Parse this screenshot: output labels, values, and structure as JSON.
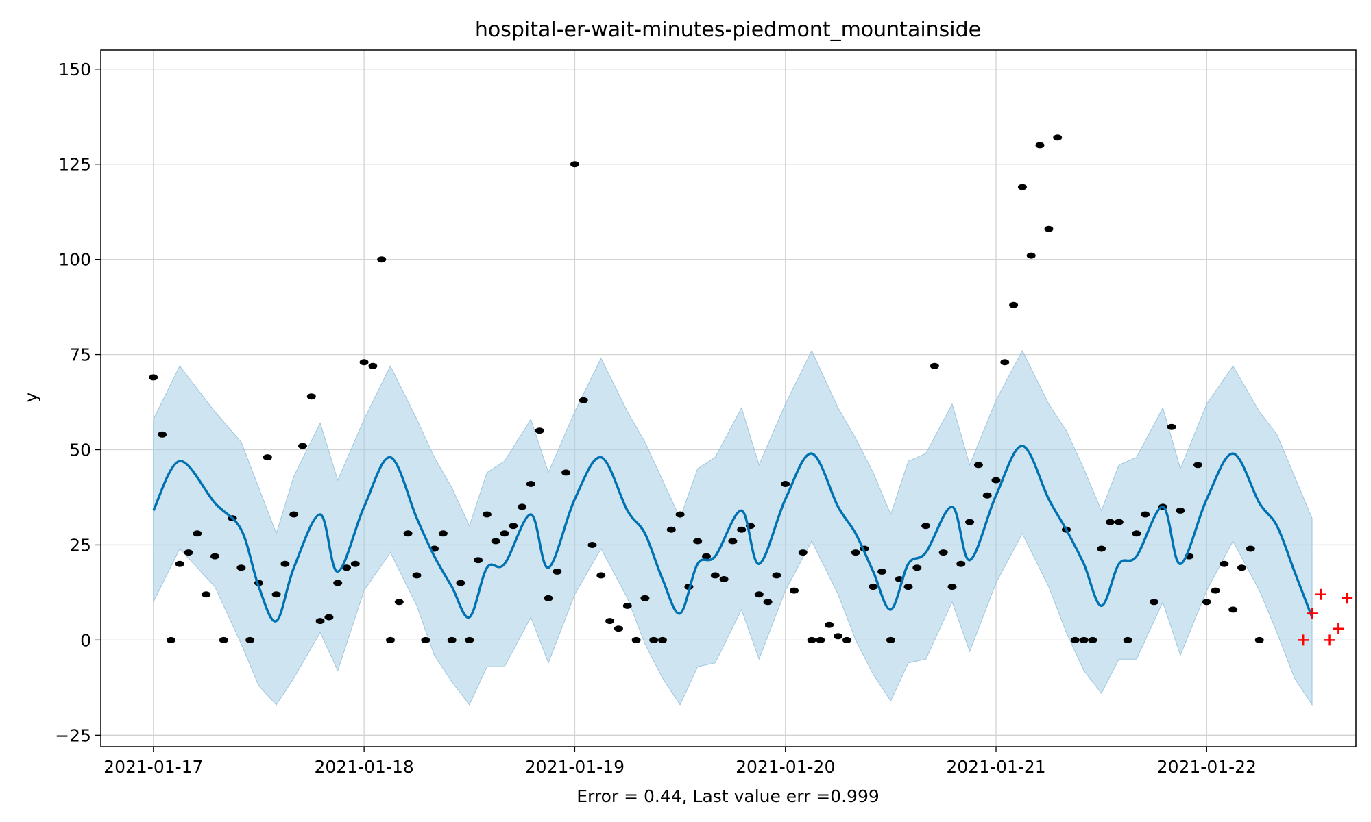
{
  "chart_data": {
    "type": "line",
    "title": "hospital-er-wait-minutes-piedmont_mountainside",
    "xlabel": "Error = 0.44, Last value err =0.999",
    "ylabel": "y",
    "xlim": [
      "2021-01-16 18:00",
      "2021-01-22 17:00"
    ],
    "ylim": [
      -28,
      155
    ],
    "x_ticks": [
      "2021-01-17",
      "2021-01-18",
      "2021-01-19",
      "2021-01-20",
      "2021-01-21",
      "2021-01-22"
    ],
    "y_ticks": [
      -25,
      0,
      25,
      50,
      75,
      100,
      125,
      150
    ],
    "grid": true,
    "colors": {
      "forecast": "#0072b2",
      "interval": "#a6cde4",
      "observed": "#000000",
      "holdout": "#ff0000"
    },
    "series": [
      {
        "kind": "forecast",
        "times": [
          "2021-01-17 00:00",
          "2021-01-17 03:00",
          "2021-01-17 07:00",
          "2021-01-17 10:00",
          "2021-01-17 12:00",
          "2021-01-17 14:00",
          "2021-01-17 16:00",
          "2021-01-17 19:00",
          "2021-01-17 21:00",
          "2021-01-18 00:00",
          "2021-01-18 03:00",
          "2021-01-18 06:00",
          "2021-01-18 08:00",
          "2021-01-18 10:00",
          "2021-01-18 12:00",
          "2021-01-18 14:00",
          "2021-01-18 16:00",
          "2021-01-18 19:00",
          "2021-01-18 21:00",
          "2021-01-19 00:00",
          "2021-01-19 03:00",
          "2021-01-19 06:00",
          "2021-01-19 08:00",
          "2021-01-19 10:00",
          "2021-01-19 12:00",
          "2021-01-19 14:00",
          "2021-01-19 16:00",
          "2021-01-19 19:00",
          "2021-01-19 21:00",
          "2021-01-20 00:00",
          "2021-01-20 03:00",
          "2021-01-20 06:00",
          "2021-01-20 08:00",
          "2021-01-20 10:00",
          "2021-01-20 12:00",
          "2021-01-20 14:00",
          "2021-01-20 16:00",
          "2021-01-20 19:00",
          "2021-01-20 21:00",
          "2021-01-21 00:00",
          "2021-01-21 03:00",
          "2021-01-21 06:00",
          "2021-01-21 08:00",
          "2021-01-21 10:00",
          "2021-01-21 12:00",
          "2021-01-21 14:00",
          "2021-01-21 16:00",
          "2021-01-21 19:00",
          "2021-01-21 21:00",
          "2021-01-22 00:00",
          "2021-01-22 03:00",
          "2021-01-22 06:00",
          "2021-01-22 08:00",
          "2021-01-22 10:00",
          "2021-01-22 12:00"
        ],
        "values": [
          34,
          47,
          36,
          29,
          14,
          5,
          19,
          33,
          18,
          35,
          48,
          32,
          22,
          14,
          6,
          19,
          20,
          33,
          19,
          37,
          48,
          34,
          28,
          16,
          7,
          20,
          22,
          34,
          20,
          37,
          49,
          35,
          28,
          18,
          8,
          20,
          23,
          35,
          21,
          38,
          51,
          37,
          29,
          20,
          9,
          20,
          22,
          35,
          20,
          37,
          49,
          36,
          30,
          18,
          6
        ],
        "lower": [
          10,
          24,
          14,
          -1,
          -12,
          -17,
          -10,
          2,
          -8,
          13,
          23,
          9,
          -4,
          -11,
          -17,
          -7,
          -7,
          6,
          -6,
          12,
          24,
          11,
          -1,
          -10,
          -17,
          -7,
          -6,
          8,
          -5,
          13,
          26,
          12,
          0,
          -9,
          -16,
          -6,
          -5,
          10,
          -3,
          15,
          28,
          14,
          2,
          -8,
          -14,
          -5,
          -5,
          10,
          -4,
          13,
          26,
          13,
          2,
          -10,
          -17
        ],
        "upper": [
          58,
          72,
          60,
          52,
          40,
          28,
          43,
          57,
          42,
          58,
          72,
          58,
          48,
          40,
          30,
          44,
          47,
          58,
          44,
          60,
          74,
          60,
          52,
          42,
          32,
          45,
          48,
          61,
          46,
          62,
          76,
          61,
          53,
          44,
          33,
          47,
          49,
          62,
          46,
          63,
          76,
          62,
          55,
          45,
          34,
          46,
          48,
          61,
          45,
          62,
          72,
          60,
          54,
          43,
          32
        ]
      },
      {
        "kind": "observed",
        "times": [
          "2021-01-17 00:00",
          "2021-01-17 01:00",
          "2021-01-17 02:00",
          "2021-01-17 03:00",
          "2021-01-17 04:00",
          "2021-01-17 05:00",
          "2021-01-17 06:00",
          "2021-01-17 07:00",
          "2021-01-17 08:00",
          "2021-01-17 09:00",
          "2021-01-17 10:00",
          "2021-01-17 11:00",
          "2021-01-17 12:00",
          "2021-01-17 13:00",
          "2021-01-17 14:00",
          "2021-01-17 15:00",
          "2021-01-17 16:00",
          "2021-01-17 17:00",
          "2021-01-17 18:00",
          "2021-01-17 19:00",
          "2021-01-17 20:00",
          "2021-01-17 21:00",
          "2021-01-17 22:00",
          "2021-01-17 23:00",
          "2021-01-18 00:00",
          "2021-01-18 01:00",
          "2021-01-18 02:00",
          "2021-01-18 03:00",
          "2021-01-18 04:00",
          "2021-01-18 05:00",
          "2021-01-18 06:00",
          "2021-01-18 07:00",
          "2021-01-18 08:00",
          "2021-01-18 09:00",
          "2021-01-18 10:00",
          "2021-01-18 11:00",
          "2021-01-18 12:00",
          "2021-01-18 13:00",
          "2021-01-18 14:00",
          "2021-01-18 15:00",
          "2021-01-18 16:00",
          "2021-01-18 17:00",
          "2021-01-18 18:00",
          "2021-01-18 19:00",
          "2021-01-18 20:00",
          "2021-01-18 21:00",
          "2021-01-18 22:00",
          "2021-01-18 23:00",
          "2021-01-19 00:00",
          "2021-01-19 01:00",
          "2021-01-19 02:00",
          "2021-01-19 03:00",
          "2021-01-19 04:00",
          "2021-01-19 05:00",
          "2021-01-19 06:00",
          "2021-01-19 07:00",
          "2021-01-19 08:00",
          "2021-01-19 09:00",
          "2021-01-19 10:00",
          "2021-01-19 11:00",
          "2021-01-19 12:00",
          "2021-01-19 13:00",
          "2021-01-19 14:00",
          "2021-01-19 15:00",
          "2021-01-19 16:00",
          "2021-01-19 17:00",
          "2021-01-19 18:00",
          "2021-01-19 19:00",
          "2021-01-19 20:00",
          "2021-01-19 21:00",
          "2021-01-19 22:00",
          "2021-01-19 23:00",
          "2021-01-20 00:00",
          "2021-01-20 01:00",
          "2021-01-20 02:00",
          "2021-01-20 03:00",
          "2021-01-20 04:00",
          "2021-01-20 05:00",
          "2021-01-20 06:00",
          "2021-01-20 07:00",
          "2021-01-20 08:00",
          "2021-01-20 09:00",
          "2021-01-20 10:00",
          "2021-01-20 11:00",
          "2021-01-20 12:00",
          "2021-01-20 13:00",
          "2021-01-20 14:00",
          "2021-01-20 15:00",
          "2021-01-20 16:00",
          "2021-01-20 17:00",
          "2021-01-20 18:00",
          "2021-01-20 19:00",
          "2021-01-20 20:00",
          "2021-01-20 21:00",
          "2021-01-20 22:00",
          "2021-01-20 23:00",
          "2021-01-21 00:00",
          "2021-01-21 01:00",
          "2021-01-21 02:00",
          "2021-01-21 03:00",
          "2021-01-21 04:00",
          "2021-01-21 05:00",
          "2021-01-21 06:00",
          "2021-01-21 07:00",
          "2021-01-21 08:00",
          "2021-01-21 09:00",
          "2021-01-21 10:00",
          "2021-01-21 11:00",
          "2021-01-21 12:00",
          "2021-01-21 13:00",
          "2021-01-21 14:00",
          "2021-01-21 15:00",
          "2021-01-21 16:00",
          "2021-01-21 17:00",
          "2021-01-21 18:00",
          "2021-01-21 19:00",
          "2021-01-21 20:00",
          "2021-01-21 21:00",
          "2021-01-21 22:00",
          "2021-01-21 23:00",
          "2021-01-22 00:00",
          "2021-01-22 01:00",
          "2021-01-22 02:00",
          "2021-01-22 03:00",
          "2021-01-22 04:00",
          "2021-01-22 05:00",
          "2021-01-22 06:00"
        ],
        "values": [
          69,
          54,
          0,
          20,
          23,
          28,
          12,
          22,
          0,
          32,
          19,
          0,
          15,
          48,
          12,
          20,
          33,
          51,
          64,
          5,
          6,
          15,
          19,
          20,
          73,
          72,
          100,
          0,
          10,
          28,
          17,
          0,
          24,
          28,
          0,
          15,
          0,
          21,
          33,
          26,
          28,
          30,
          35,
          41,
          55,
          11,
          18,
          44,
          125,
          63,
          25,
          17,
          5,
          3,
          9,
          0,
          11,
          0,
          0,
          29,
          33,
          14,
          26,
          22,
          17,
          16,
          26,
          29,
          30,
          12,
          10,
          17,
          41,
          13,
          23,
          0,
          0,
          4,
          1,
          0,
          23,
          24,
          14,
          18,
          0,
          16,
          14,
          19,
          30,
          72,
          23,
          14,
          20,
          31,
          46,
          38,
          42,
          73,
          88,
          119,
          101,
          130,
          108,
          132,
          29,
          0,
          0,
          0,
          24,
          31,
          31,
          0,
          28,
          33,
          10,
          35,
          56,
          34,
          22,
          46,
          10,
          13,
          20,
          8,
          19,
          24,
          0
        ]
      },
      {
        "kind": "holdout",
        "times": [
          "2021-01-22 11:00",
          "2021-01-22 12:00",
          "2021-01-22 13:00",
          "2021-01-22 14:00",
          "2021-01-22 15:00",
          "2021-01-22 16:00"
        ],
        "values": [
          0,
          7,
          12,
          0,
          3,
          11
        ]
      }
    ]
  }
}
